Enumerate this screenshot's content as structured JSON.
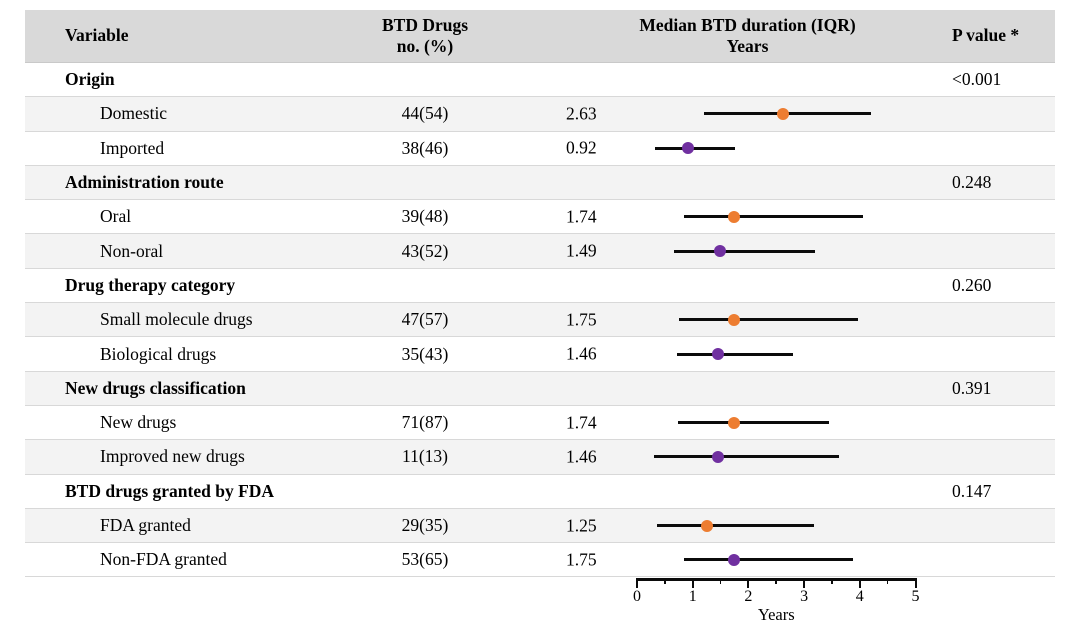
{
  "chart_data": {
    "type": "scatter",
    "variant": "forest-plot-table",
    "column_headers": {
      "variable": "Variable",
      "count_line1": "BTD Drugs",
      "count_line2": "no. (%)",
      "duration_line1": "Median BTD duration (IQR)",
      "duration_line2": "Years",
      "p": "P value *"
    },
    "xlabel": "Years",
    "xlim": [
      0,
      5
    ],
    "x_major_ticks": [
      "0",
      "1",
      "2",
      "3",
      "4",
      "5"
    ],
    "x_minor_step": 0.5,
    "grid": false,
    "groups": [
      {
        "label": "Origin",
        "p_value": "<0.001",
        "items": [
          {
            "label": "Domestic",
            "n_pct": "44(54)",
            "median_text": "2.63",
            "median": 2.63,
            "iqr": [
              1.2,
              4.2
            ],
            "marker_color": "#ED7D31"
          },
          {
            "label": "Imported",
            "n_pct": "38(46)",
            "median_text": "0.92",
            "median": 0.92,
            "iqr": [
              0.33,
              1.76
            ],
            "marker_color": "#7030A0"
          }
        ]
      },
      {
        "label": "Administration route",
        "p_value": "0.248",
        "items": [
          {
            "label": "Oral",
            "n_pct": "39(48)",
            "median_text": "1.74",
            "median": 1.74,
            "iqr": [
              0.85,
              4.05
            ],
            "marker_color": "#ED7D31"
          },
          {
            "label": "Non-oral",
            "n_pct": "43(52)",
            "median_text": "1.49",
            "median": 1.49,
            "iqr": [
              0.67,
              3.2
            ],
            "marker_color": "#7030A0"
          }
        ]
      },
      {
        "label": "Drug therapy category",
        "p_value": "0.260",
        "items": [
          {
            "label": "Small molecule drugs",
            "n_pct": "47(57)",
            "median_text": "1.75",
            "median": 1.75,
            "iqr": [
              0.75,
              3.97
            ],
            "marker_color": "#ED7D31"
          },
          {
            "label": "Biological drugs",
            "n_pct": "35(43)",
            "median_text": "1.46",
            "median": 1.46,
            "iqr": [
              0.72,
              2.8
            ],
            "marker_color": "#7030A0"
          }
        ]
      },
      {
        "label": "New drugs classification",
        "p_value": "0.391",
        "items": [
          {
            "label": "New drugs",
            "n_pct": "71(87)",
            "median_text": "1.74",
            "median": 1.74,
            "iqr": [
              0.74,
              3.45
            ],
            "marker_color": "#ED7D31"
          },
          {
            "label": "Improved new drugs",
            "n_pct": "11(13)",
            "median_text": "1.46",
            "median": 1.46,
            "iqr": [
              0.31,
              3.62
            ],
            "marker_color": "#7030A0"
          }
        ]
      },
      {
        "label": "BTD drugs granted by FDA",
        "p_value": "0.147",
        "items": [
          {
            "label": "FDA granted",
            "n_pct": "29(35)",
            "median_text": "1.25",
            "median": 1.25,
            "iqr": [
              0.36,
              3.17
            ],
            "marker_color": "#ED7D31"
          },
          {
            "label": "Non-FDA granted",
            "n_pct": "53(65)",
            "median_text": "1.75",
            "median": 1.75,
            "iqr": [
              0.84,
              3.87
            ],
            "marker_color": "#7030A0"
          }
        ]
      }
    ]
  },
  "colors": {
    "header_bg": "#D9D9D9",
    "shaded_row_bg": "#F3F3F3",
    "orange_marker": "#ED7D31",
    "purple_marker": "#7030A0",
    "line": "#0B0B0B"
  }
}
